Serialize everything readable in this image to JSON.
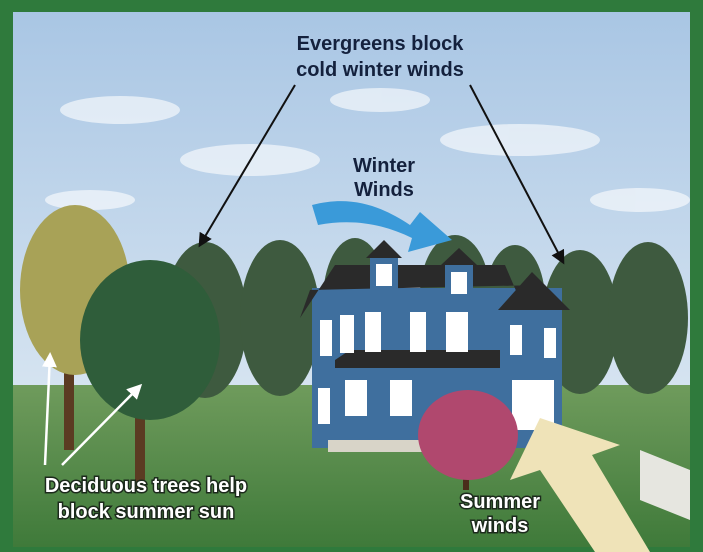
{
  "annotations": [
    {
      "lines": [
        "Evergreens block",
        "cold winter winds"
      ]
    },
    {
      "lines": [
        "Winter",
        "Winds"
      ]
    },
    {
      "lines": [
        "Deciduous trees help",
        "block summer sun"
      ]
    },
    {
      "lines": [
        "Summer",
        "winds"
      ]
    }
  ]
}
